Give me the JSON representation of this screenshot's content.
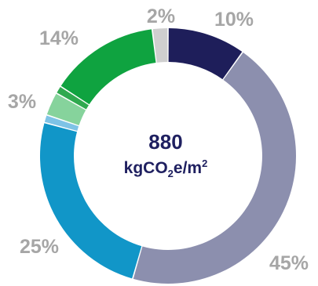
{
  "chart_data": {
    "type": "pie",
    "donut": true,
    "center_value": "880",
    "center_unit": {
      "prefix": "kgCO",
      "subscript": "2",
      "middle": "e/m",
      "superscript": "2"
    },
    "slices": [
      {
        "value": 10,
        "label": "10%",
        "color": "#1e1e5a",
        "show_label": true
      },
      {
        "value": 45,
        "label": "45%",
        "color": "#8c8fae",
        "show_label": true
      },
      {
        "value": 25,
        "label": "25%",
        "color": "#1196c8",
        "show_label": true
      },
      {
        "value": 1,
        "label": "",
        "color": "#7ec3e6",
        "show_label": false
      },
      {
        "value": 3,
        "label": "3%",
        "color": "#86d39c",
        "show_label": true
      },
      {
        "value": 1,
        "label": "",
        "color": "#2fa94f",
        "show_label": false
      },
      {
        "value": 14,
        "label": "14%",
        "color": "#0fa340",
        "show_label": true
      },
      {
        "value": 2,
        "label": "2%",
        "color": "#cfcfcf",
        "show_label": true
      }
    ],
    "label_color": "#a6a6a6",
    "center_color": "#1f2060",
    "legend": "none"
  }
}
